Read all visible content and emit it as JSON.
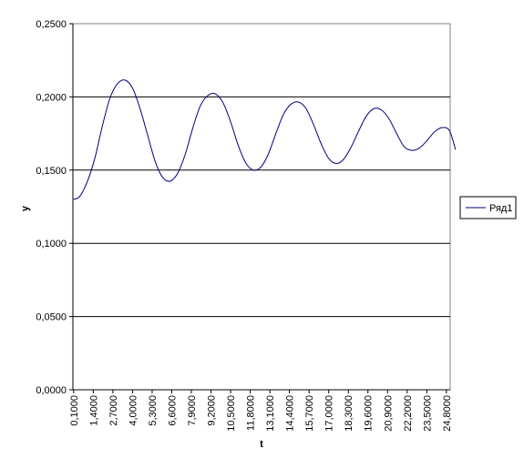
{
  "chart_data": {
    "type": "line",
    "title": "",
    "xlabel": "t",
    "ylabel": "y",
    "ylim": [
      0,
      0.25
    ],
    "y_ticks": [
      "0,0000",
      "0,0500",
      "0,1000",
      "0,1500",
      "0,2000",
      "0,2500"
    ],
    "x_tick_labels": [
      "0,1000",
      "1,4000",
      "2,7000",
      "4,0000",
      "5,3000",
      "6,6000",
      "7,9000",
      "9,2000",
      "10,5000",
      "11,8000",
      "13,1000",
      "14,4000",
      "15,7000",
      "17,0000",
      "18,3000",
      "19,6000",
      "20,9000",
      "22,2000",
      "23,5000",
      "24,8000"
    ],
    "grid": "horizontal",
    "legend_position": "right",
    "series": [
      {
        "name": "Ряд1",
        "color": "#000080",
        "x": [
          0.1,
          0.5,
          1.0,
          1.5,
          2.0,
          2.5,
          3.0,
          3.5,
          4.0,
          4.5,
          5.0,
          5.5,
          6.0,
          6.5,
          7.0,
          7.5,
          8.0,
          8.5,
          9.0,
          9.5,
          10.0,
          10.5,
          11.0,
          11.5,
          12.0,
          12.5,
          13.0,
          13.5,
          14.0,
          14.5,
          15.0,
          15.5,
          16.0,
          16.5,
          17.0,
          17.5,
          18.0,
          18.5,
          19.0,
          19.5,
          20.0,
          20.5,
          21.0,
          21.5,
          22.0,
          22.5,
          23.0,
          23.5,
          24.0,
          24.5,
          25.0,
          25.4
        ],
        "y": [
          0.13,
          0.132,
          0.142,
          0.158,
          0.18,
          0.199,
          0.209,
          0.2115,
          0.206,
          0.192,
          0.174,
          0.156,
          0.145,
          0.1425,
          0.148,
          0.161,
          0.179,
          0.194,
          0.201,
          0.202,
          0.196,
          0.183,
          0.167,
          0.155,
          0.15,
          0.152,
          0.161,
          0.175,
          0.188,
          0.195,
          0.1965,
          0.192,
          0.181,
          0.168,
          0.158,
          0.1545,
          0.1575,
          0.166,
          0.177,
          0.187,
          0.192,
          0.191,
          0.185,
          0.175,
          0.166,
          0.1635,
          0.165,
          0.17,
          0.176,
          0.179,
          0.177,
          0.164
        ]
      }
    ]
  }
}
